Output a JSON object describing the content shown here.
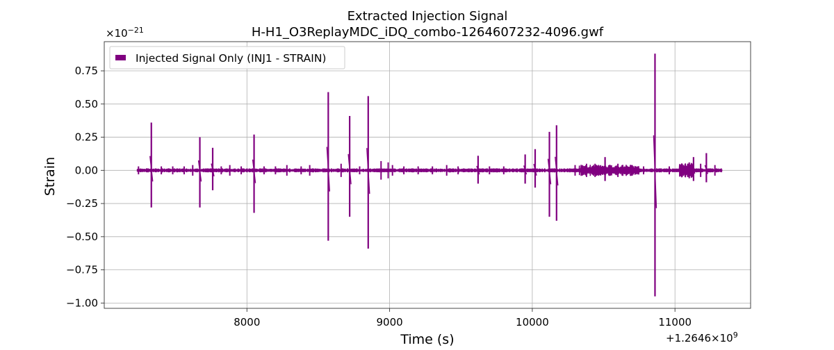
{
  "chart_data": {
    "type": "line",
    "title": "Extracted Injection Signal",
    "subtitle": "H-H1_O3ReplayMDC_iDQ_combo-1264607232-4096.gwf",
    "xlabel": "Time (s)",
    "ylabel": "Strain",
    "x_offset_label": "+1.2646×10",
    "x_offset_exponent": "9",
    "y_multiplier_label": "×10",
    "y_multiplier_exponent": "−21",
    "xlim": [
      7000,
      11530
    ],
    "ylim": [
      -1.04,
      0.97
    ],
    "x_ticks": [
      8000,
      9000,
      10000,
      11000
    ],
    "x_tick_labels": [
      "8000",
      "9000",
      "10000",
      "11000"
    ],
    "y_ticks": [
      0.75,
      0.5,
      0.25,
      0.0,
      -0.25,
      -0.5,
      -0.75,
      -1.0
    ],
    "y_tick_labels": [
      "0.75",
      "0.50",
      "0.25",
      "0.00",
      "−0.25",
      "−0.50",
      "−0.75",
      "−1.00"
    ],
    "grid": true,
    "legend_position": "top-left",
    "series": [
      {
        "name": "Injected Signal Only (INJ1 - STRAIN)",
        "color": "#800080",
        "x_range": [
          7232,
          11328
        ],
        "baseline_amplitude": 0.01,
        "spikes": [
          {
            "t": 7330,
            "max": 0.36,
            "min": -0.28
          },
          {
            "t": 7670,
            "max": 0.25,
            "min": -0.28
          },
          {
            "t": 7760,
            "max": 0.17,
            "min": -0.15
          },
          {
            "t": 8050,
            "max": 0.27,
            "min": -0.32
          },
          {
            "t": 8570,
            "max": 0.59,
            "min": -0.53
          },
          {
            "t": 8720,
            "max": 0.41,
            "min": -0.35
          },
          {
            "t": 8850,
            "max": 0.56,
            "min": -0.59
          },
          {
            "t": 10020,
            "max": 0.16,
            "min": -0.13
          },
          {
            "t": 10120,
            "max": 0.29,
            "min": -0.35
          },
          {
            "t": 10170,
            "max": 0.34,
            "min": -0.38
          },
          {
            "t": 10860,
            "max": 0.88,
            "min": -0.95
          },
          {
            "t": 9950,
            "max": 0.12,
            "min": -0.1
          },
          {
            "t": 9620,
            "max": 0.11,
            "min": -0.1
          },
          {
            "t": 10510,
            "max": 0.1,
            "min": -0.08
          },
          {
            "t": 11130,
            "max": 0.1,
            "min": -0.08
          },
          {
            "t": 11220,
            "max": 0.13,
            "min": -0.09
          }
        ],
        "small_bursts": [
          {
            "t": 7240,
            "a": 0.03
          },
          {
            "t": 7400,
            "a": 0.03
          },
          {
            "t": 7480,
            "a": 0.03
          },
          {
            "t": 7560,
            "a": 0.03
          },
          {
            "t": 7620,
            "a": 0.04
          },
          {
            "t": 7820,
            "a": 0.03
          },
          {
            "t": 7880,
            "a": 0.04
          },
          {
            "t": 7960,
            "a": 0.03
          },
          {
            "t": 8120,
            "a": 0.03
          },
          {
            "t": 8200,
            "a": 0.03
          },
          {
            "t": 8280,
            "a": 0.04
          },
          {
            "t": 8380,
            "a": 0.03
          },
          {
            "t": 8440,
            "a": 0.04
          },
          {
            "t": 8660,
            "a": 0.05
          },
          {
            "t": 8790,
            "a": 0.03
          },
          {
            "t": 8940,
            "a": 0.07
          },
          {
            "t": 9020,
            "a": 0.04
          },
          {
            "t": 9100,
            "a": 0.03
          },
          {
            "t": 9200,
            "a": 0.03
          },
          {
            "t": 9300,
            "a": 0.03
          },
          {
            "t": 9400,
            "a": 0.04
          },
          {
            "t": 9480,
            "a": 0.03
          },
          {
            "t": 9700,
            "a": 0.03
          },
          {
            "t": 9800,
            "a": 0.03
          },
          {
            "t": 10300,
            "a": 0.04
          },
          {
            "t": 10380,
            "a": 0.05
          },
          {
            "t": 10440,
            "a": 0.05
          },
          {
            "t": 10600,
            "a": 0.05
          },
          {
            "t": 10700,
            "a": 0.04
          },
          {
            "t": 10780,
            "a": 0.03
          },
          {
            "t": 10960,
            "a": 0.03
          },
          {
            "t": 11050,
            "a": 0.05
          },
          {
            "t": 11100,
            "a": 0.06
          },
          {
            "t": 11180,
            "a": 0.05
          },
          {
            "t": 11280,
            "a": 0.04
          },
          {
            "t": 8990,
            "a": 0.06
          }
        ],
        "dense_regions": [
          {
            "from": 10330,
            "to": 10750,
            "a": 0.03
          },
          {
            "from": 11030,
            "to": 11130,
            "a": 0.04
          }
        ]
      }
    ]
  }
}
